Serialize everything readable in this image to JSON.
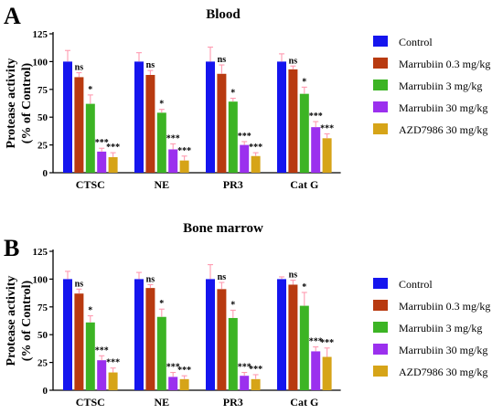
{
  "colors": {
    "control": "#1515ee",
    "marr_03": "#b83a10",
    "marr_3": "#3cb424",
    "marr_30": "#9b30ee",
    "azd": "#d6a418",
    "error": "#ff9ab0",
    "axis": "#000000"
  },
  "chart_data": [
    {
      "type": "bar",
      "panel_letter": "A",
      "title": "Blood",
      "ylabel_line1": "Protease activity",
      "ylabel_line2": "(% of Control)",
      "ylim": [
        0,
        125
      ],
      "yticks": [
        "0",
        "25",
        "50",
        "75",
        "100",
        "125"
      ],
      "categories": [
        "CTSC",
        "NE",
        "PR3",
        "Cat G"
      ],
      "series": [
        {
          "name": "Control",
          "color_key": "control",
          "values": [
            100,
            100,
            100,
            100
          ],
          "errors": [
            10,
            8,
            13,
            7
          ],
          "sig": [
            "",
            "",
            "",
            ""
          ]
        },
        {
          "name": "Marrubiin 0.3 mg/kg",
          "color_key": "marr_03",
          "values": [
            86,
            88,
            89,
            93
          ],
          "errors": [
            4,
            4,
            8,
            3
          ],
          "sig": [
            "ns",
            "ns",
            "ns",
            "ns"
          ]
        },
        {
          "name": "Marrubiin 3 mg/kg",
          "color_key": "marr_3",
          "values": [
            62,
            54,
            64,
            71
          ],
          "errors": [
            8,
            3,
            3,
            6
          ],
          "sig": [
            "*",
            "*",
            "*",
            "*"
          ]
        },
        {
          "name": "Marrubiin 30 mg/kg",
          "color_key": "marr_30",
          "values": [
            19,
            21,
            25,
            41
          ],
          "errors": [
            3,
            5,
            3,
            5
          ],
          "sig": [
            "***",
            "***",
            "***",
            "***"
          ]
        },
        {
          "name": "AZD7986 30 mg/kg",
          "color_key": "azd",
          "values": [
            14,
            11,
            15,
            31
          ],
          "errors": [
            4,
            4,
            3,
            4
          ],
          "sig": [
            "***",
            "***",
            "***",
            "***"
          ]
        }
      ]
    },
    {
      "type": "bar",
      "panel_letter": "B",
      "title": "Bone marrow",
      "ylabel_line1": "Protease activity",
      "ylabel_line2": "(% of Control)",
      "ylim": [
        0,
        125
      ],
      "yticks": [
        "0",
        "25",
        "50",
        "75",
        "100",
        "125"
      ],
      "categories": [
        "CTSC",
        "NE",
        "PR3",
        "Cat G"
      ],
      "series": [
        {
          "name": "Control",
          "color_key": "control",
          "values": [
            100,
            100,
            100,
            100
          ],
          "errors": [
            7,
            6,
            13,
            2
          ],
          "sig": [
            "",
            "",
            "",
            ""
          ]
        },
        {
          "name": "Marrubiin 0.3 mg/kg",
          "color_key": "marr_03",
          "values": [
            87,
            92,
            91,
            95
          ],
          "errors": [
            4,
            3,
            6,
            4
          ],
          "sig": [
            "ns",
            "ns",
            "ns",
            "ns"
          ]
        },
        {
          "name": "Marrubiin 3 mg/kg",
          "color_key": "marr_3",
          "values": [
            61,
            66,
            65,
            76
          ],
          "errors": [
            6,
            7,
            7,
            12
          ],
          "sig": [
            "*",
            "*",
            "*",
            "*"
          ]
        },
        {
          "name": "Marrubiin 30 mg/kg",
          "color_key": "marr_30",
          "values": [
            27,
            12,
            13,
            35
          ],
          "errors": [
            4,
            4,
            3,
            4
          ],
          "sig": [
            "***",
            "***",
            "***",
            "***"
          ]
        },
        {
          "name": "AZD7986 30 mg/kg",
          "color_key": "azd",
          "values": [
            16,
            10,
            10,
            30
          ],
          "errors": [
            4,
            3,
            4,
            8
          ],
          "sig": [
            "***",
            "***",
            "***",
            "***"
          ]
        }
      ]
    }
  ]
}
